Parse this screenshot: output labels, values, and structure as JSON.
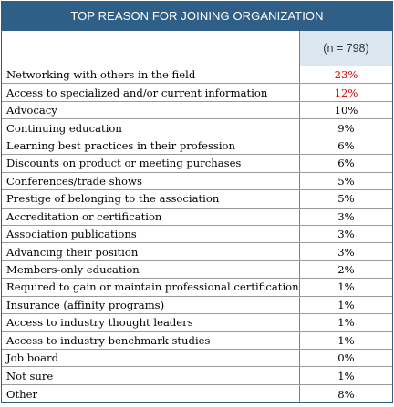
{
  "title": "TOP REASON FOR JOINING ORGANIZATION",
  "sample_size": "(n = 798)",
  "highlight_color": "#d40000",
  "rows": [
    {
      "label": "Networking with others in the field",
      "value": "23%",
      "highlight": true
    },
    {
      "label": "Access to specialized and/or current information",
      "value": "12%",
      "highlight": true
    },
    {
      "label": "Advocacy",
      "value": "10%",
      "highlight": false
    },
    {
      "label": "Continuing education",
      "value": "9%",
      "highlight": false
    },
    {
      "label": "Learning best practices in their profession",
      "value": "6%",
      "highlight": false
    },
    {
      "label": "Discounts on product or meeting purchases",
      "value": "6%",
      "highlight": false
    },
    {
      "label": "Conferences/trade shows",
      "value": "5%",
      "highlight": false
    },
    {
      "label": "Prestige of belonging to the association",
      "value": "5%",
      "highlight": false
    },
    {
      "label": "Accreditation or certification",
      "value": "3%",
      "highlight": false
    },
    {
      "label": "Association publications",
      "value": "3%",
      "highlight": false
    },
    {
      "label": "Advancing their position",
      "value": "3%",
      "highlight": false
    },
    {
      "label": "Members-only education",
      "value": "2%",
      "highlight": false
    },
    {
      "label": "Required to gain or maintain professional certification",
      "value": "1%",
      "highlight": false
    },
    {
      "label": "Insurance (affinity programs)",
      "value": "1%",
      "highlight": false
    },
    {
      "label": "Access to industry thought leaders",
      "value": "1%",
      "highlight": false
    },
    {
      "label": "Access to industry benchmark studies",
      "value": "1%",
      "highlight": false
    },
    {
      "label": "Job board",
      "value": "0%",
      "highlight": false
    },
    {
      "label": "Not sure",
      "value": "1%",
      "highlight": false
    },
    {
      "label": "Other",
      "value": "8%",
      "highlight": false
    }
  ]
}
